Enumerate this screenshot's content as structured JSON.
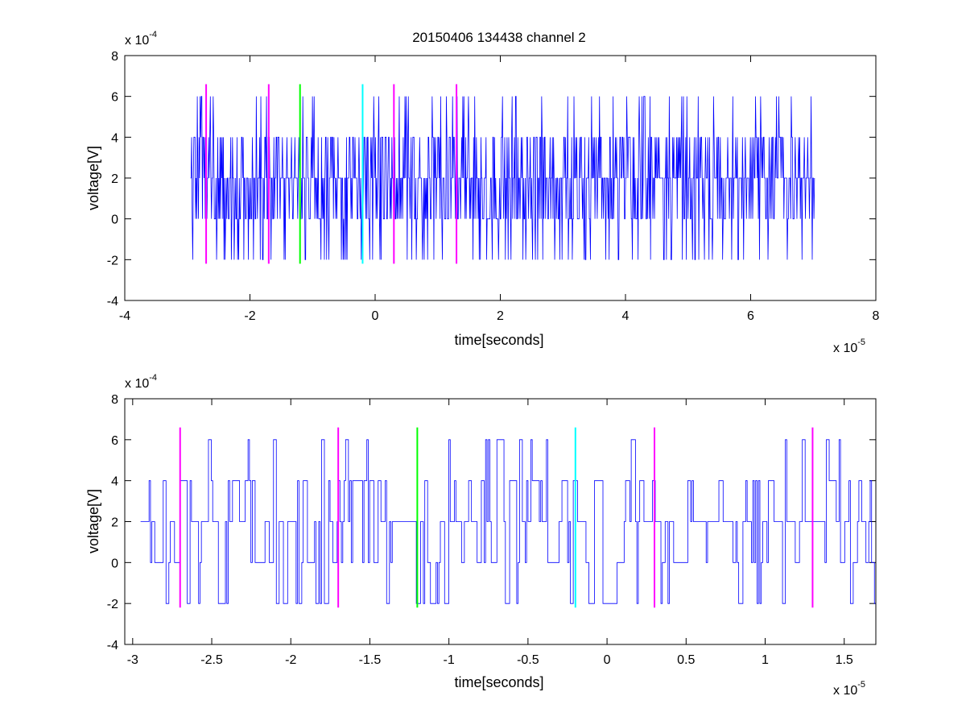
{
  "chart_data": [
    {
      "type": "line",
      "title": "20150406 134438 channel 2",
      "xlabel": "time[seconds]",
      "ylabel": "voltage[V]",
      "x_exponent_label": "x 10",
      "x_exponent": "-5",
      "y_exponent_label": "x 10",
      "y_exponent": "-4",
      "xlim": [
        -4,
        8
      ],
      "ylim": [
        -4,
        8
      ],
      "x_ticks": [
        "-4",
        "-2",
        "0",
        "2",
        "4",
        "6",
        "8"
      ],
      "y_ticks": [
        "-4",
        "-2",
        "0",
        "2",
        "4",
        "6",
        "8"
      ],
      "signal": {
        "color": "#0000ff",
        "x_range": [
          -2.95,
          7.02
        ],
        "levels": [
          -2,
          0,
          2,
          4,
          6
        ],
        "baseline": 2,
        "values_sample": [
          2,
          4,
          2,
          0,
          2,
          2,
          4,
          2,
          0,
          2,
          4,
          2,
          6,
          2,
          0,
          2,
          -2,
          2,
          4,
          2,
          0,
          2,
          2,
          4,
          2,
          0,
          2,
          4,
          2,
          2,
          0,
          2,
          4,
          6,
          2,
          0,
          -2,
          2,
          4,
          2,
          0,
          2,
          4,
          2,
          2,
          0,
          2,
          4,
          2,
          0
        ]
      },
      "markers": [
        {
          "x": -2.7,
          "color": "#ff00ff",
          "y_range": [
            -2.2,
            6.6
          ]
        },
        {
          "x": -1.7,
          "color": "#ff00ff",
          "y_range": [
            -2.2,
            6.6
          ]
        },
        {
          "x": -1.2,
          "color": "#00ff00",
          "y_range": [
            -2.2,
            6.6
          ]
        },
        {
          "x": -0.2,
          "color": "#00ffff",
          "y_range": [
            -2.2,
            6.6
          ]
        },
        {
          "x": 0.3,
          "color": "#ff00ff",
          "y_range": [
            -2.2,
            6.6
          ]
        },
        {
          "x": 1.3,
          "color": "#ff00ff",
          "y_range": [
            -2.2,
            6.6
          ]
        }
      ],
      "grid": false
    },
    {
      "type": "line",
      "title": "",
      "xlabel": "time[seconds]",
      "ylabel": "voltage[V]",
      "x_exponent_label": "x 10",
      "x_exponent": "-5",
      "y_exponent_label": "x 10",
      "y_exponent": "-4",
      "xlim": [
        -3.05,
        1.7
      ],
      "ylim": [
        -4,
        8
      ],
      "x_ticks": [
        "-3",
        "-2.5",
        "-2",
        "-1.5",
        "-1",
        "-0.5",
        "0",
        "0.5",
        "1",
        "1.5"
      ],
      "x_tick_values": [
        -3,
        -2.5,
        -2,
        -1.5,
        -1,
        -0.5,
        0,
        0.5,
        1,
        1.5
      ],
      "y_ticks": [
        "-4",
        "-2",
        "0",
        "2",
        "4",
        "6",
        "8"
      ],
      "signal": {
        "color": "#0000ff",
        "x_range": [
          -2.95,
          1.7
        ],
        "levels": [
          -2,
          0,
          2,
          4,
          6
        ],
        "baseline": 2
      },
      "markers": [
        {
          "x": -2.7,
          "color": "#ff00ff",
          "y_range": [
            -2.2,
            6.6
          ]
        },
        {
          "x": -1.7,
          "color": "#ff00ff",
          "y_range": [
            -2.2,
            6.6
          ]
        },
        {
          "x": -1.2,
          "color": "#00ff00",
          "y_range": [
            -2.2,
            6.6
          ]
        },
        {
          "x": -0.2,
          "color": "#00ffff",
          "y_range": [
            -2.2,
            6.6
          ]
        },
        {
          "x": 0.3,
          "color": "#ff00ff",
          "y_range": [
            -2.2,
            6.6
          ]
        },
        {
          "x": 1.3,
          "color": "#ff00ff",
          "y_range": [
            -2.2,
            6.6
          ]
        }
      ],
      "grid": false
    }
  ]
}
